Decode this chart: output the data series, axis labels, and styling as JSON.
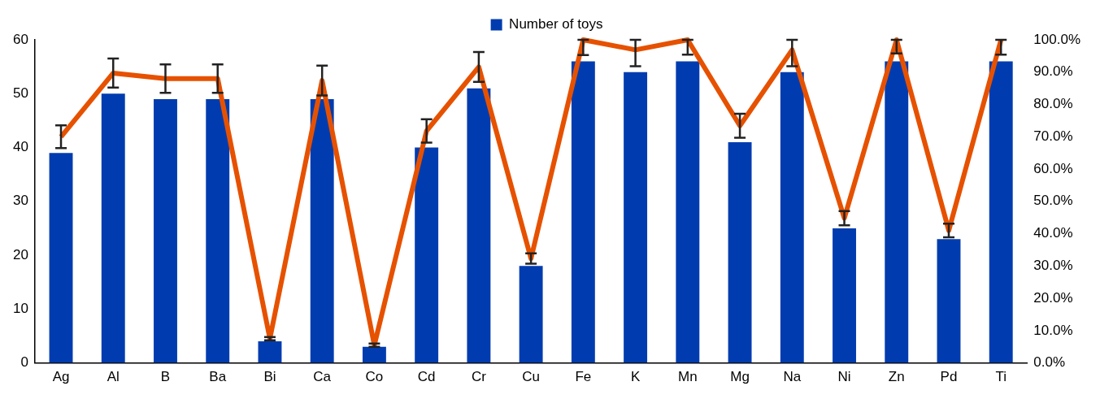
{
  "chart_data": {
    "type": "bar",
    "categories": [
      "Ag",
      "Al",
      "B",
      "Ba",
      "Bi",
      "Ca",
      "Co",
      "Cd",
      "Cr",
      "Cu",
      "Fe",
      "K",
      "Mn",
      "Mg",
      "Na",
      "Ni",
      "Zn",
      "Pd",
      "Ti"
    ],
    "series": [
      {
        "name": "Number of toys",
        "color": "#003caf",
        "values": [
          39,
          50,
          49,
          49,
          4,
          49,
          3,
          40,
          51,
          18,
          56,
          54,
          56,
          41,
          54,
          25,
          56,
          23,
          56
        ]
      },
      {
        "type": "line",
        "axis": "y2",
        "color": "#e65100",
        "values": [
          70,
          89.7,
          88,
          88,
          7.5,
          87.4,
          5.5,
          71.8,
          91.6,
          32.3,
          100,
          96.9,
          100,
          73.4,
          96.9,
          44.8,
          100,
          41,
          100
        ],
        "errors": [
          3.5,
          4.5,
          4.4,
          4.4,
          0.5,
          4.6,
          0.5,
          3.6,
          4.6,
          1.6,
          [
            95.3,
            100
          ],
          [
            91.8,
            100
          ],
          [
            95.4,
            100
          ],
          3.7,
          [
            91.8,
            100
          ],
          2.2,
          [
            95.8,
            100
          ],
          2.1,
          [
            95.4,
            100
          ]
        ]
      }
    ],
    "ylim": [
      0,
      60
    ],
    "yticks": [
      0,
      10,
      20,
      30,
      40,
      50,
      60
    ],
    "y2lim": [
      0,
      100
    ],
    "y2ticks": [
      {
        "value": 0,
        "label": "0.0%"
      },
      {
        "value": 10,
        "label": "10.0%"
      },
      {
        "value": 20,
        "label": "20.0%"
      },
      {
        "value": 30,
        "label": "30.0%"
      },
      {
        "value": 40,
        "label": "40.0%"
      },
      {
        "value": 50,
        "label": "50.0%"
      },
      {
        "value": 60,
        "label": "60.0%"
      },
      {
        "value": 70,
        "label": "70.0%"
      },
      {
        "value": 80,
        "label": "80.0%"
      },
      {
        "value": 90,
        "label": "90.0%"
      },
      {
        "value": 100,
        "label": "100.0%"
      }
    ],
    "grid": false,
    "legend": "top",
    "marker": "none"
  }
}
